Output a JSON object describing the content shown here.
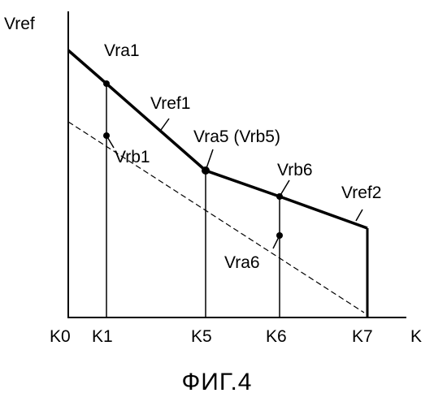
{
  "figure": {
    "caption": "ФИГ.4",
    "axes": {
      "y_label": "Vref",
      "x_label": "K",
      "x_ticks": [
        "K0",
        "K1",
        "K5",
        "K6",
        "K7"
      ]
    },
    "curve_labels": {
      "vref1": "Vref1",
      "vref2": "Vref2"
    },
    "point_labels": {
      "vra1": "Vra1",
      "vrb1": "Vrb1",
      "vra5": "Vra5 (Vrb5)",
      "vrb6": "Vrb6",
      "vra6": "Vra6"
    },
    "colors": {
      "ink": "#000000",
      "background": "#ffffff"
    }
  }
}
